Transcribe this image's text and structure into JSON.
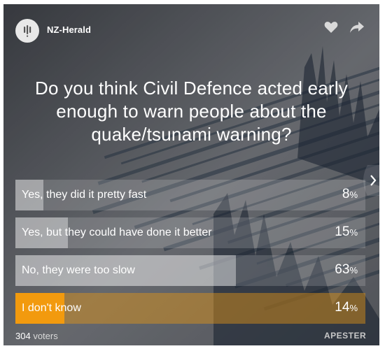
{
  "header": {
    "brand": "NZ-Herald",
    "avatar_icon": "microphone-bars-icon",
    "like_icon": "heart-icon",
    "share_icon": "share-arrow-icon"
  },
  "question": "Do you think Civil Defence acted early enough to warn people about the quake/tsunami warning?",
  "answers": [
    {
      "label": "Yes, they did it pretty fast",
      "percent": 8,
      "percent_text": "8",
      "selected": false
    },
    {
      "label": "Yes, but they could have done it better",
      "percent": 15,
      "percent_text": "15",
      "selected": false
    },
    {
      "label": "No, they were too slow",
      "percent": 63,
      "percent_text": "63",
      "selected": false
    },
    {
      "label": "I don't know",
      "percent": 14,
      "percent_text": "14",
      "selected": true
    }
  ],
  "percent_sign": "%",
  "footer": {
    "voter_count": "304",
    "voter_label": "voters",
    "provider": "APESTER"
  },
  "colors": {
    "selected_fill": "#f29a0e",
    "background": "#5a5d63"
  },
  "navigation": {
    "next_icon": "chevron-right-icon"
  }
}
